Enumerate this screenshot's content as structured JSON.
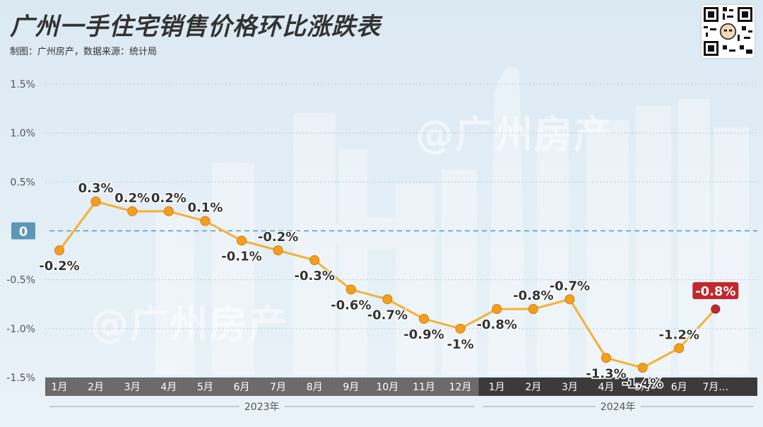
{
  "header": {
    "title": "广州一手住宅销售价格环比涨跌表",
    "subtitle": "制图：广州房产，数据来源：统计局",
    "watermark": "@广州房产"
  },
  "colors": {
    "line": "#f2b232",
    "point": "#f0a020",
    "point_stroke": "#e07800",
    "highlight": "#c0282e",
    "zero_line": "#5a97b8",
    "axis_bar_2023": "#6b6b6b",
    "axis_bar_2024": "#3b3b3b"
  },
  "chart_data": {
    "type": "line",
    "categories": [
      "1月",
      "2月",
      "3月",
      "4月",
      "5月",
      "6月",
      "7月",
      "8月",
      "9月",
      "10月",
      "11月",
      "12月",
      "1月",
      "2月",
      "3月",
      "4月",
      "5月",
      "6月",
      "7月…"
    ],
    "groups": [
      {
        "label": "2023年",
        "start": 0,
        "end": 11
      },
      {
        "label": "2024年",
        "start": 12,
        "end": 18
      }
    ],
    "values": [
      -0.2,
      0.3,
      0.2,
      0.2,
      0.1,
      -0.1,
      -0.2,
      -0.3,
      -0.6,
      -0.7,
      -0.9,
      -1.0,
      -0.8,
      -0.8,
      -0.7,
      -1.3,
      -1.4,
      -1.2,
      -0.8
    ],
    "data_labels": [
      "-0.2%",
      "0.3%",
      "0.2%",
      "0.2%",
      "0.1%",
      "-0.1%",
      "-0.2%",
      "-0.3%",
      "-0.6%",
      "-0.7%",
      "-0.9%",
      "-1%",
      "-0.8%",
      "-0.8%",
      "-0.7%",
      "-1.3%",
      "-1.4%",
      "-1.2%",
      "-0.8%"
    ],
    "highlight_index": 18,
    "yticks": [
      "1.5%",
      "1.0%",
      "0.5%",
      "0",
      "-0.5%",
      "-1.0%",
      "-1.5%"
    ],
    "ytick_values": [
      1.5,
      1.0,
      0.5,
      0,
      -0.5,
      -1.0,
      -1.5
    ],
    "ylim": [
      -1.5,
      1.5
    ],
    "zero_label": "0",
    "grid": "horizontal dotted"
  }
}
